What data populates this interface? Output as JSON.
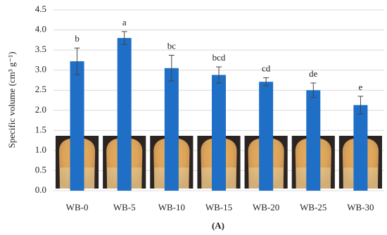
{
  "chart_data": {
    "type": "bar",
    "y_label": "Specific volume (cm³ g⁻¹)",
    "caption": "(A)",
    "categories": [
      "WB-0",
      "WB-5",
      "WB-10",
      "WB-15",
      "WB-20",
      "WB-25",
      "WB-30"
    ],
    "values": [
      3.22,
      3.8,
      3.05,
      2.88,
      2.71,
      2.5,
      2.13
    ],
    "errors": [
      0.33,
      0.16,
      0.32,
      0.2,
      0.1,
      0.18,
      0.22
    ],
    "significance_letters": [
      "b",
      "a",
      "bc",
      "bcd",
      "cd",
      "de",
      "e"
    ],
    "color": "#1f6fc6",
    "ylim": [
      0,
      4.5
    ],
    "yticks": [
      {
        "value": 0,
        "label": "0.0"
      },
      0.5,
      {
        "value": 1,
        "label": "1.0"
      },
      1.5,
      {
        "value": 2,
        "label": "2.0"
      },
      2.5,
      {
        "value": 3,
        "label": "3.0"
      },
      3.5,
      {
        "value": 4,
        "label": "4.0"
      },
      4.5
    ],
    "grid": true
  }
}
